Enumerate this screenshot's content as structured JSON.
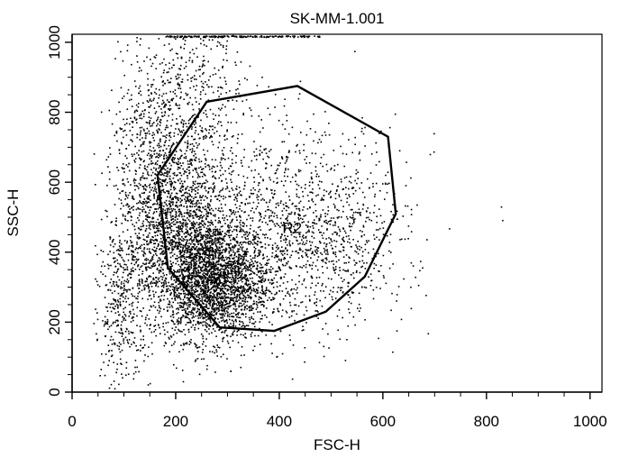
{
  "chart_data": {
    "type": "scatter",
    "title": "SK-MM-1.001",
    "xlabel": "FSC-H",
    "ylabel": "SSC-H",
    "xlim": [
      0,
      1023
    ],
    "ylim": [
      0,
      1023
    ],
    "xticks": [
      0,
      200,
      400,
      600,
      800,
      1000
    ],
    "yticks": [
      0,
      200,
      400,
      600,
      800,
      1000
    ],
    "x_tick_labels": [
      "0",
      "200",
      "400",
      "600",
      "800",
      "1000"
    ],
    "y_tick_labels": [
      "0",
      "200",
      "400",
      "600",
      "800",
      "1000"
    ],
    "grid": false,
    "point_color": "#000000",
    "gate": {
      "label": "R2",
      "color": "#000000",
      "vertices": [
        [
          165,
          620
        ],
        [
          260,
          830
        ],
        [
          435,
          875
        ],
        [
          610,
          730
        ],
        [
          625,
          510
        ],
        [
          565,
          330
        ],
        [
          490,
          230
        ],
        [
          390,
          175
        ],
        [
          285,
          185
        ],
        [
          185,
          355
        ]
      ]
    },
    "clusters": [
      {
        "cx": 270,
        "cy": 320,
        "sx": 55,
        "sy": 85,
        "n": 2600
      },
      {
        "cx": 210,
        "cy": 500,
        "sx": 45,
        "sy": 130,
        "n": 1100
      },
      {
        "cx": 400,
        "cy": 480,
        "sx": 120,
        "sy": 150,
        "n": 1300
      },
      {
        "cx": 150,
        "cy": 600,
        "sx": 40,
        "sy": 160,
        "n": 650
      },
      {
        "cx": 95,
        "cy": 260,
        "sx": 28,
        "sy": 130,
        "n": 420
      },
      {
        "cx": 220,
        "cy": 880,
        "sx": 55,
        "sy": 110,
        "n": 420
      },
      {
        "cx": 500,
        "cy": 400,
        "sx": 60,
        "sy": 90,
        "n": 300
      }
    ],
    "ceiling_points": {
      "x_from": 180,
      "x_to": 480,
      "y": 1020,
      "n": 180
    }
  }
}
